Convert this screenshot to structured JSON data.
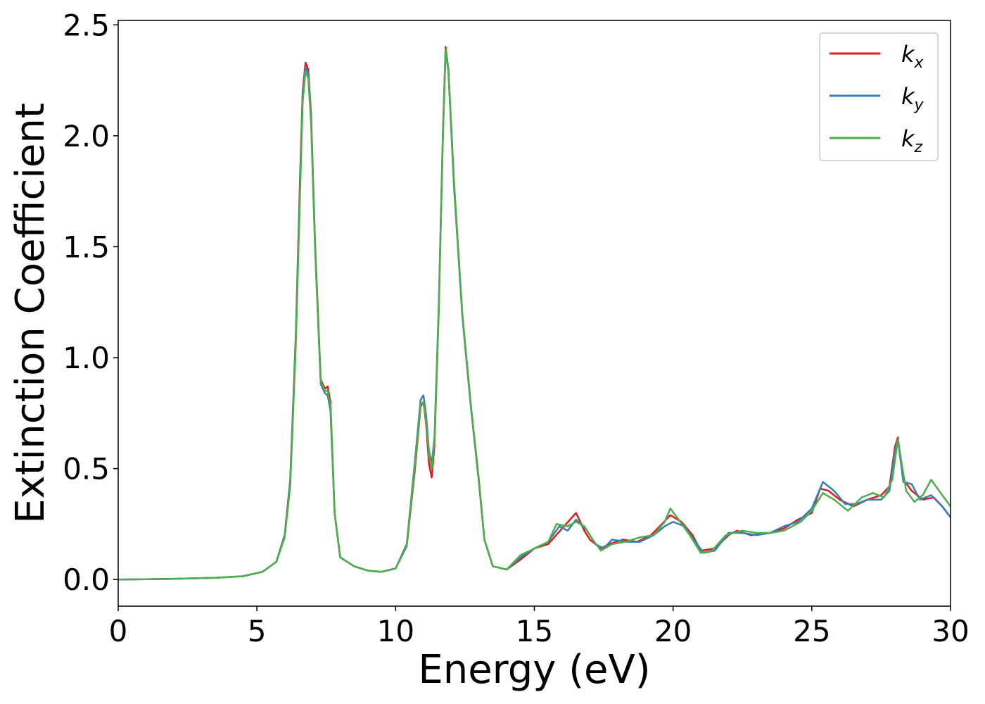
{
  "chart_data": {
    "type": "line",
    "title": "",
    "xlabel": "Energy (eV)",
    "ylabel": "Extinction Coefficient",
    "xlim": [
      0,
      30
    ],
    "ylim": [
      -0.12,
      2.52
    ],
    "xticks": [
      0,
      5,
      10,
      15,
      20,
      25,
      30
    ],
    "xtick_labels": [
      "0",
      "5",
      "10",
      "15",
      "20",
      "25",
      "30"
    ],
    "yticks": [
      0.0,
      0.5,
      1.0,
      1.5,
      2.0,
      2.5
    ],
    "ytick_labels": [
      "0.0",
      "0.5",
      "1.0",
      "1.5",
      "2.0",
      "2.5"
    ],
    "grid": false,
    "legend_position": "top-right",
    "series": [
      {
        "name": "k",
        "sub": "x",
        "color": "#e41a1c",
        "points": [
          [
            0,
            0
          ],
          [
            2,
            0.003
          ],
          [
            3.5,
            0.008
          ],
          [
            4.5,
            0.015
          ],
          [
            5.2,
            0.035
          ],
          [
            5.7,
            0.08
          ],
          [
            6.0,
            0.2
          ],
          [
            6.2,
            0.45
          ],
          [
            6.4,
            1.1
          ],
          [
            6.55,
            1.8
          ],
          [
            6.65,
            2.2
          ],
          [
            6.75,
            2.33
          ],
          [
            6.85,
            2.3
          ],
          [
            6.95,
            2.1
          ],
          [
            7.1,
            1.5
          ],
          [
            7.3,
            0.9
          ],
          [
            7.45,
            0.86
          ],
          [
            7.55,
            0.87
          ],
          [
            7.65,
            0.8
          ],
          [
            7.8,
            0.3
          ],
          [
            8.0,
            0.1
          ],
          [
            8.5,
            0.06
          ],
          [
            9.0,
            0.04
          ],
          [
            9.5,
            0.035
          ],
          [
            10.0,
            0.05
          ],
          [
            10.4,
            0.15
          ],
          [
            10.7,
            0.5
          ],
          [
            10.9,
            0.78
          ],
          [
            11.0,
            0.8
          ],
          [
            11.1,
            0.7
          ],
          [
            11.2,
            0.52
          ],
          [
            11.3,
            0.46
          ],
          [
            11.4,
            0.6
          ],
          [
            11.55,
            1.2
          ],
          [
            11.7,
            2.0
          ],
          [
            11.8,
            2.4
          ],
          [
            11.9,
            2.3
          ],
          [
            12.1,
            1.8
          ],
          [
            12.4,
            1.2
          ],
          [
            12.7,
            0.8
          ],
          [
            13.0,
            0.45
          ],
          [
            13.2,
            0.18
          ],
          [
            13.5,
            0.06
          ],
          [
            14.0,
            0.045
          ],
          [
            14.5,
            0.09
          ],
          [
            15.0,
            0.14
          ],
          [
            15.5,
            0.16
          ],
          [
            16.0,
            0.23
          ],
          [
            16.5,
            0.3
          ],
          [
            16.8,
            0.22
          ],
          [
            17.0,
            0.18
          ],
          [
            17.4,
            0.14
          ],
          [
            17.7,
            0.16
          ],
          [
            18.2,
            0.18
          ],
          [
            18.7,
            0.17
          ],
          [
            19.2,
            0.2
          ],
          [
            19.6,
            0.25
          ],
          [
            19.9,
            0.29
          ],
          [
            20.3,
            0.26
          ],
          [
            20.7,
            0.2
          ],
          [
            21.0,
            0.13
          ],
          [
            21.5,
            0.14
          ],
          [
            22.0,
            0.2
          ],
          [
            22.3,
            0.22
          ],
          [
            22.8,
            0.2
          ],
          [
            23.5,
            0.21
          ],
          [
            24.0,
            0.23
          ],
          [
            24.5,
            0.27
          ],
          [
            25.0,
            0.3
          ],
          [
            25.3,
            0.41
          ],
          [
            25.6,
            0.4
          ],
          [
            26.0,
            0.36
          ],
          [
            26.5,
            0.33
          ],
          [
            27.0,
            0.36
          ],
          [
            27.5,
            0.38
          ],
          [
            27.8,
            0.42
          ],
          [
            28.0,
            0.6
          ],
          [
            28.1,
            0.64
          ],
          [
            28.3,
            0.45
          ],
          [
            28.6,
            0.4
          ],
          [
            29.0,
            0.36
          ],
          [
            29.4,
            0.37
          ],
          [
            29.7,
            0.33
          ],
          [
            30.0,
            0.28
          ]
        ]
      },
      {
        "name": "k",
        "sub": "y",
        "color": "#377eb8",
        "points": [
          [
            0,
            0
          ],
          [
            2,
            0.003
          ],
          [
            3.5,
            0.008
          ],
          [
            4.5,
            0.015
          ],
          [
            5.2,
            0.035
          ],
          [
            5.7,
            0.08
          ],
          [
            6.0,
            0.2
          ],
          [
            6.2,
            0.44
          ],
          [
            6.4,
            1.08
          ],
          [
            6.55,
            1.76
          ],
          [
            6.65,
            2.18
          ],
          [
            6.75,
            2.31
          ],
          [
            6.85,
            2.28
          ],
          [
            6.95,
            2.08
          ],
          [
            7.1,
            1.48
          ],
          [
            7.3,
            0.88
          ],
          [
            7.45,
            0.84
          ],
          [
            7.55,
            0.83
          ],
          [
            7.65,
            0.76
          ],
          [
            7.8,
            0.3
          ],
          [
            8.0,
            0.1
          ],
          [
            8.5,
            0.06
          ],
          [
            9.0,
            0.04
          ],
          [
            9.5,
            0.035
          ],
          [
            10.0,
            0.05
          ],
          [
            10.4,
            0.16
          ],
          [
            10.7,
            0.54
          ],
          [
            10.9,
            0.81
          ],
          [
            11.0,
            0.83
          ],
          [
            11.1,
            0.74
          ],
          [
            11.2,
            0.58
          ],
          [
            11.3,
            0.52
          ],
          [
            11.4,
            0.64
          ],
          [
            11.55,
            1.22
          ],
          [
            11.7,
            2.0
          ],
          [
            11.8,
            2.38
          ],
          [
            11.9,
            2.29
          ],
          [
            12.1,
            1.78
          ],
          [
            12.4,
            1.19
          ],
          [
            12.7,
            0.79
          ],
          [
            13.0,
            0.44
          ],
          [
            13.2,
            0.18
          ],
          [
            13.5,
            0.06
          ],
          [
            14.0,
            0.045
          ],
          [
            14.5,
            0.1
          ],
          [
            15.0,
            0.14
          ],
          [
            15.5,
            0.17
          ],
          [
            15.9,
            0.24
          ],
          [
            16.2,
            0.22
          ],
          [
            16.5,
            0.27
          ],
          [
            16.9,
            0.22
          ],
          [
            17.2,
            0.16
          ],
          [
            17.5,
            0.14
          ],
          [
            17.8,
            0.18
          ],
          [
            18.3,
            0.17
          ],
          [
            18.8,
            0.17
          ],
          [
            19.3,
            0.2
          ],
          [
            19.7,
            0.24
          ],
          [
            20.0,
            0.26
          ],
          [
            20.4,
            0.24
          ],
          [
            20.8,
            0.17
          ],
          [
            21.1,
            0.12
          ],
          [
            21.5,
            0.13
          ],
          [
            22.0,
            0.21
          ],
          [
            22.5,
            0.21
          ],
          [
            23.0,
            0.2
          ],
          [
            23.5,
            0.21
          ],
          [
            24.0,
            0.24
          ],
          [
            24.5,
            0.26
          ],
          [
            25.0,
            0.32
          ],
          [
            25.4,
            0.44
          ],
          [
            25.8,
            0.4
          ],
          [
            26.2,
            0.34
          ],
          [
            26.6,
            0.34
          ],
          [
            27.0,
            0.36
          ],
          [
            27.5,
            0.36
          ],
          [
            27.8,
            0.4
          ],
          [
            28.0,
            0.58
          ],
          [
            28.1,
            0.63
          ],
          [
            28.3,
            0.44
          ],
          [
            28.6,
            0.43
          ],
          [
            28.9,
            0.36
          ],
          [
            29.3,
            0.38
          ],
          [
            29.7,
            0.33
          ],
          [
            30.0,
            0.28
          ]
        ]
      },
      {
        "name": "k",
        "sub": "z",
        "color": "#4daf4a",
        "points": [
          [
            0,
            0
          ],
          [
            2,
            0.003
          ],
          [
            3.5,
            0.008
          ],
          [
            4.5,
            0.015
          ],
          [
            5.2,
            0.035
          ],
          [
            5.7,
            0.08
          ],
          [
            6.0,
            0.19
          ],
          [
            6.2,
            0.42
          ],
          [
            6.4,
            1.05
          ],
          [
            6.55,
            1.72
          ],
          [
            6.65,
            2.15
          ],
          [
            6.75,
            2.29
          ],
          [
            6.85,
            2.26
          ],
          [
            6.95,
            2.06
          ],
          [
            7.1,
            1.47
          ],
          [
            7.3,
            0.89
          ],
          [
            7.45,
            0.85
          ],
          [
            7.55,
            0.85
          ],
          [
            7.65,
            0.78
          ],
          [
            7.8,
            0.3
          ],
          [
            8.0,
            0.1
          ],
          [
            8.5,
            0.06
          ],
          [
            9.0,
            0.04
          ],
          [
            9.5,
            0.035
          ],
          [
            10.0,
            0.05
          ],
          [
            10.4,
            0.15
          ],
          [
            10.7,
            0.52
          ],
          [
            10.9,
            0.79
          ],
          [
            11.0,
            0.8
          ],
          [
            11.1,
            0.72
          ],
          [
            11.2,
            0.56
          ],
          [
            11.3,
            0.5
          ],
          [
            11.4,
            0.62
          ],
          [
            11.55,
            1.2
          ],
          [
            11.7,
            1.98
          ],
          [
            11.8,
            2.39
          ],
          [
            11.9,
            2.3
          ],
          [
            12.1,
            1.8
          ],
          [
            12.4,
            1.2
          ],
          [
            12.7,
            0.8
          ],
          [
            13.0,
            0.44
          ],
          [
            13.2,
            0.18
          ],
          [
            13.5,
            0.06
          ],
          [
            14.0,
            0.045
          ],
          [
            14.5,
            0.11
          ],
          [
            15.0,
            0.14
          ],
          [
            15.5,
            0.17
          ],
          [
            15.8,
            0.25
          ],
          [
            16.2,
            0.24
          ],
          [
            16.5,
            0.26
          ],
          [
            16.8,
            0.24
          ],
          [
            17.1,
            0.18
          ],
          [
            17.4,
            0.13
          ],
          [
            17.8,
            0.16
          ],
          [
            18.3,
            0.17
          ],
          [
            18.8,
            0.19
          ],
          [
            19.3,
            0.2
          ],
          [
            19.7,
            0.26
          ],
          [
            19.9,
            0.32
          ],
          [
            20.2,
            0.27
          ],
          [
            20.6,
            0.2
          ],
          [
            21.0,
            0.12
          ],
          [
            21.4,
            0.13
          ],
          [
            21.9,
            0.2
          ],
          [
            22.5,
            0.22
          ],
          [
            23.0,
            0.21
          ],
          [
            23.5,
            0.21
          ],
          [
            24.0,
            0.22
          ],
          [
            24.6,
            0.26
          ],
          [
            25.0,
            0.31
          ],
          [
            25.4,
            0.39
          ],
          [
            25.8,
            0.36
          ],
          [
            26.3,
            0.31
          ],
          [
            26.8,
            0.37
          ],
          [
            27.2,
            0.39
          ],
          [
            27.6,
            0.37
          ],
          [
            27.9,
            0.45
          ],
          [
            28.1,
            0.63
          ],
          [
            28.4,
            0.4
          ],
          [
            28.7,
            0.35
          ],
          [
            29.0,
            0.38
          ],
          [
            29.3,
            0.45
          ],
          [
            29.7,
            0.38
          ],
          [
            30.0,
            0.33
          ]
        ]
      }
    ]
  }
}
